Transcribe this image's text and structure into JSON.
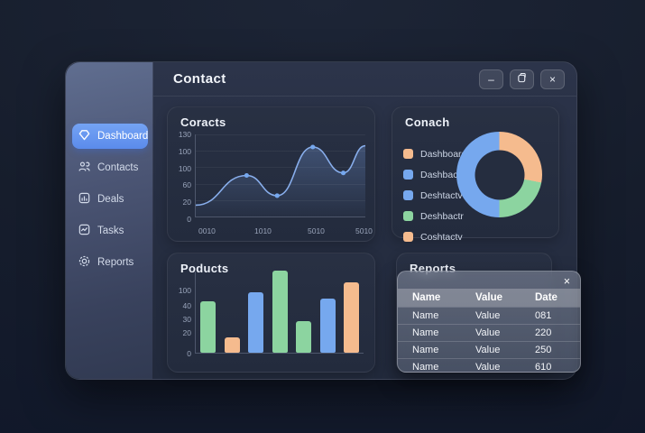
{
  "window": {
    "title": "Contact",
    "controls": {
      "minimize": "–",
      "close": "×"
    }
  },
  "sidebar": {
    "items": [
      {
        "label": "Dashboard",
        "icon": "gem-icon",
        "active": true
      },
      {
        "label": "Contacts",
        "icon": "people-icon",
        "active": false
      },
      {
        "label": "Deals",
        "icon": "chart-square-icon",
        "active": false
      },
      {
        "label": "Tasks",
        "icon": "task-square-icon",
        "active": false
      },
      {
        "label": "Reports",
        "icon": "gear-icon",
        "active": false
      }
    ]
  },
  "panels": {
    "line": {
      "title": "Coracts"
    },
    "donut": {
      "title": "Conach"
    },
    "bar": {
      "title": "Poducts"
    },
    "reports": {
      "title": "Reports"
    }
  },
  "colors": {
    "blue": "#76a8ee",
    "green": "#8cd4a0",
    "orange": "#f5bb8e",
    "line": "#88aeec",
    "accent": "#619af0"
  },
  "chart_data": [
    {
      "type": "line",
      "title": "Coracts",
      "y_ticks": [
        "130",
        "100",
        "100",
        "60",
        "20",
        "0"
      ],
      "x_ticks": [
        "0010",
        "1010",
        "5010",
        "5010"
      ],
      "ylim": [
        0,
        130
      ],
      "grid": true,
      "points": [
        {
          "x": 0,
          "v": 18,
          "dot": false
        },
        {
          "x": 30,
          "v": 65,
          "dot": true
        },
        {
          "x": 48,
          "v": 33,
          "dot": true
        },
        {
          "x": 69,
          "v": 110,
          "dot": true
        },
        {
          "x": 87,
          "v": 69,
          "dot": true
        },
        {
          "x": 100,
          "v": 112,
          "dot": false
        }
      ]
    },
    {
      "type": "pie",
      "title": "Conach",
      "legend": [
        {
          "label": "Dashboard",
          "color": "orange"
        },
        {
          "label": "Dashbactr",
          "color": "blue"
        },
        {
          "label": "Deshtactv",
          "color": "blue"
        },
        {
          "label": "Deshbactr",
          "color": "green"
        },
        {
          "label": "Coshtactv",
          "color": "orange"
        }
      ],
      "slices": [
        {
          "name": "orange-slice",
          "value": 28,
          "color": "orange"
        },
        {
          "name": "green-slice",
          "value": 22,
          "color": "green"
        },
        {
          "name": "blue-slice",
          "value": 50,
          "color": "blue"
        }
      ]
    },
    {
      "type": "bar",
      "title": "Poducts",
      "y_ticks": [
        "100",
        "40",
        "30",
        "20",
        "0"
      ],
      "ylim": [
        0,
        100
      ],
      "values": [
        62,
        18,
        73,
        99,
        38,
        65,
        85
      ],
      "bar_colors": [
        "green",
        "orange",
        "blue",
        "green",
        "green",
        "blue",
        "orange"
      ]
    },
    {
      "type": "table",
      "title": "Reports",
      "headers": [
        "Name",
        "Value",
        "Date"
      ],
      "rows": [
        [
          "Name",
          "Value",
          "081"
        ],
        [
          "Name",
          "Value",
          "220"
        ],
        [
          "Name",
          "Value",
          "250"
        ],
        [
          "Name",
          "Value",
          "610"
        ]
      ]
    }
  ]
}
